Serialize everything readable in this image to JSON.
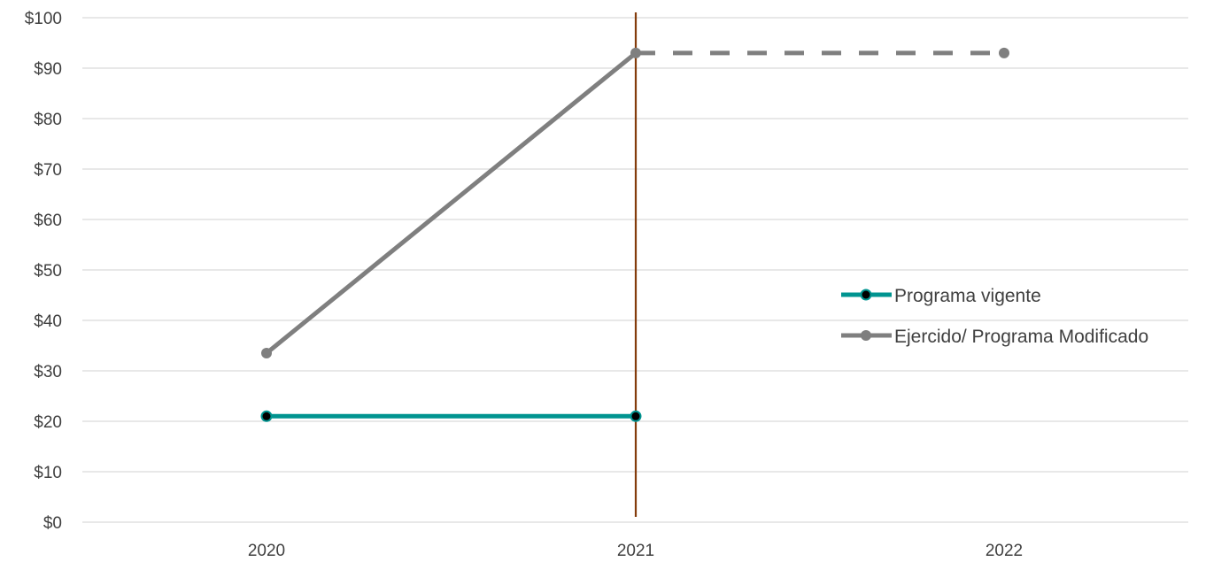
{
  "chart_data": {
    "type": "line",
    "title": "",
    "xlabel": "",
    "ylabel": "",
    "categories": [
      "2020",
      "2021",
      "2022"
    ],
    "ylim": [
      0,
      100
    ],
    "y_ticks": [
      0,
      10,
      20,
      30,
      40,
      50,
      60,
      70,
      80,
      90,
      100
    ],
    "y_tick_labels": [
      "$0",
      "$10",
      "$20",
      "$30",
      "$40",
      "$50",
      "$60",
      "$70",
      "$80",
      "$90",
      "$100"
    ],
    "grid": true,
    "legend_position": "right",
    "reference_line": {
      "x": "2021",
      "color": "#843c0c"
    },
    "series": [
      {
        "name": "Programa vigente",
        "color": "#009490",
        "marker_color": "#000000",
        "points": [
          {
            "x": "2020",
            "y": 21
          },
          {
            "x": "2021",
            "y": 21
          }
        ],
        "dashed_from_index": null
      },
      {
        "name": "Ejercido/ Programa Modificado",
        "color": "#7f7f7f",
        "marker_color": "#7f7f7f",
        "points": [
          {
            "x": "2020",
            "y": 33.5
          },
          {
            "x": "2021",
            "y": 93
          },
          {
            "x": "2022",
            "y": 93
          }
        ],
        "dashed_from_index": 1
      }
    ]
  }
}
